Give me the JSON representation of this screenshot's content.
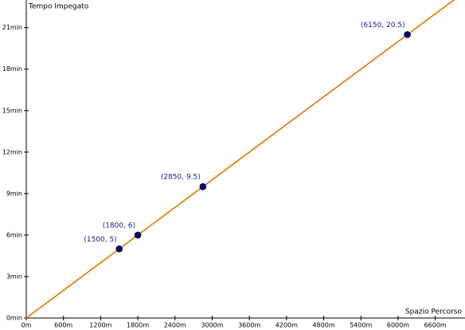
{
  "chart_data": {
    "type": "scatter",
    "x_label": "Spazio Percorso",
    "y_label": "Tempo Impegato",
    "series": [
      {
        "color": "#00007f",
        "line_color": "#e07800",
        "x": [
          1500,
          1800,
          2850,
          6150
        ],
        "values": [
          5,
          6,
          9.5,
          20.5
        ],
        "value_labels": [
          "(1500, 5)",
          "(1800, 6)",
          "(2850, 9.5)",
          "(6150, 20.5)"
        ]
      }
    ],
    "xlim": [
      0,
      7080
    ],
    "ylim": [
      0,
      23
    ],
    "xticks": [
      {
        "value": 0,
        "label": "0m"
      },
      {
        "value": 600,
        "label": "600m"
      },
      {
        "value": 1200,
        "label": "1200m"
      },
      {
        "value": 1800,
        "label": "1800m"
      },
      {
        "value": 2400,
        "label": "2400m"
      },
      {
        "value": 3000,
        "label": "3000m"
      },
      {
        "value": 3600,
        "label": "3600m"
      },
      {
        "value": 4200,
        "label": "4200m"
      },
      {
        "value": 4800,
        "label": "4800m"
      },
      {
        "value": 5400,
        "label": "5400m"
      },
      {
        "value": 6000,
        "label": "6000m"
      },
      {
        "value": 6600,
        "label": "6600m"
      }
    ],
    "yticks": [
      {
        "value": 0,
        "label": "0min"
      },
      {
        "value": 3,
        "label": "3min"
      },
      {
        "value": 6,
        "label": "6min"
      },
      {
        "value": 9,
        "label": "9min"
      },
      {
        "value": 12,
        "label": "12min"
      },
      {
        "value": 15,
        "label": "15min"
      },
      {
        "value": 18,
        "label": "18min"
      },
      {
        "value": 21,
        "label": "21min"
      }
    ]
  }
}
